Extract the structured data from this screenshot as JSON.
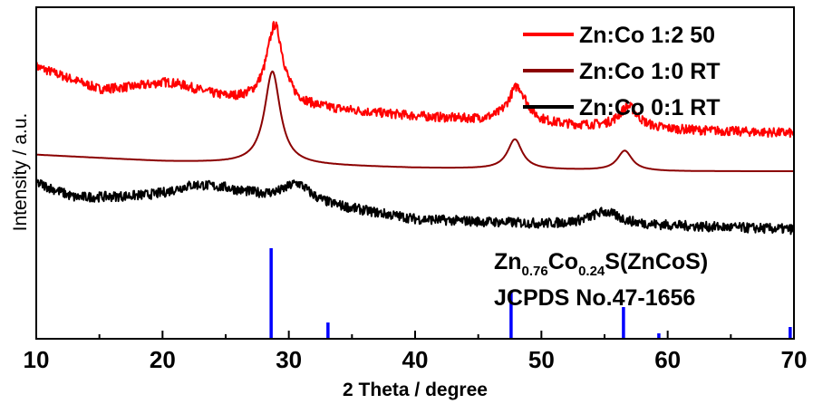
{
  "chart_data": {
    "type": "line",
    "title": "",
    "xlabel": "2 Theta / degree",
    "ylabel": "Intensity / a.u.",
    "xlim": [
      10,
      70
    ],
    "ylim": [
      0,
      100
    ],
    "x_ticks": [
      "10",
      "20",
      "30",
      "40",
      "50",
      "60",
      "70"
    ],
    "grid": false,
    "legend_position": "top-right",
    "series": [
      {
        "name": "Zn:Co 1:2 50",
        "color": "#ff0000",
        "noise": 1.4,
        "baseline": [
          [
            10,
            82
          ],
          [
            15,
            75
          ],
          [
            20,
            75.5
          ],
          [
            25,
            72
          ],
          [
            30,
            70
          ],
          [
            40,
            67
          ],
          [
            50,
            64.5
          ],
          [
            60,
            63
          ],
          [
            70,
            62
          ]
        ],
        "peaks": [
          [
            28.9,
            24,
            0.8
          ],
          [
            48.1,
            11,
            0.9
          ],
          [
            56.9,
            6.5,
            0.9
          ],
          [
            21,
            2,
            2.5
          ]
        ]
      },
      {
        "name": "Zn:Co 1:0 RT",
        "color": "#8b0000",
        "noise": 0,
        "baseline": [
          [
            10,
            55.5
          ],
          [
            20,
            53.5
          ],
          [
            30,
            52.5
          ],
          [
            40,
            51.5
          ],
          [
            50,
            51
          ],
          [
            60,
            50.5
          ],
          [
            70,
            50.5
          ]
        ],
        "peaks": [
          [
            28.7,
            28,
            0.75
          ],
          [
            47.9,
            9,
            0.7
          ],
          [
            56.6,
            6,
            0.7
          ]
        ]
      },
      {
        "name": "Zn:Co 0:1 RT",
        "color": "#000000",
        "noise": 1.5,
        "baseline": [
          [
            10,
            47
          ],
          [
            13,
            42.5
          ],
          [
            20,
            42.5
          ],
          [
            25,
            44
          ],
          [
            30,
            42
          ],
          [
            40,
            36
          ],
          [
            50,
            34.5
          ],
          [
            60,
            34
          ],
          [
            70,
            33
          ]
        ],
        "peaks": [
          [
            22.5,
            3,
            2.5
          ],
          [
            30.7,
            5,
            1.2
          ],
          [
            55,
            4,
            1.5
          ]
        ]
      }
    ],
    "reference": {
      "title": "Zn0.76Co0.24S(ZnCoS)",
      "card": "JCPDS No.47-1656",
      "color": "#0000ff",
      "lines": [
        {
          "x": 28.6,
          "intensity": 100
        },
        {
          "x": 33.1,
          "intensity": 18
        },
        {
          "x": 47.6,
          "intensity": 52
        },
        {
          "x": 56.5,
          "intensity": 35
        },
        {
          "x": 59.3,
          "intensity": 6
        },
        {
          "x": 69.7,
          "intensity": 13
        }
      ]
    }
  },
  "annotation": {
    "formula": {
      "el1": "Zn",
      "sub1": "0.76",
      "el2": "Co",
      "sub2": "0.24",
      "rest": "S(ZnCoS)"
    },
    "card": "JCPDS No.47-1656"
  }
}
